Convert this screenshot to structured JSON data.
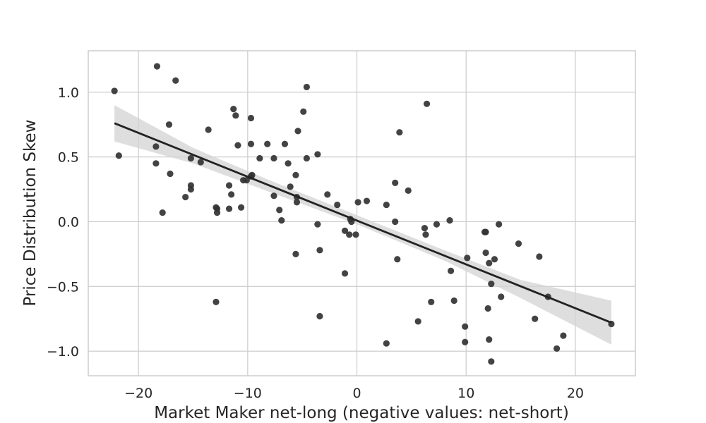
{
  "chart_data": {
    "type": "scatter",
    "title": "",
    "xlabel": "Market Maker net-long (negative values: net-short)",
    "ylabel": "Price Distribution Skew",
    "xlim": [
      -24.6,
      25.5
    ],
    "ylim": [
      -1.19,
      1.32
    ],
    "x_ticks": [
      -20,
      -10,
      0,
      10,
      20
    ],
    "y_ticks": [
      -1.0,
      -0.5,
      0.0,
      0.5,
      1.0
    ],
    "x_tick_labels": [
      "−20",
      "−10",
      "0",
      "10",
      "20"
    ],
    "y_tick_labels": [
      "−1.0",
      "−0.5",
      "0.0",
      "0.5",
      "1.0"
    ],
    "grid": true,
    "legend": "none",
    "colors": {
      "points": "#333333",
      "fit_line": "#222222",
      "ci_band": "#d3d3d3",
      "grid": "#cccccc"
    },
    "points": [
      {
        "x": -22.2,
        "y": 1.01
      },
      {
        "x": -21.8,
        "y": 0.51
      },
      {
        "x": -18.3,
        "y": 1.2
      },
      {
        "x": -18.4,
        "y": 0.58
      },
      {
        "x": -18.4,
        "y": 0.45
      },
      {
        "x": -17.8,
        "y": 0.07
      },
      {
        "x": -17.2,
        "y": 0.75
      },
      {
        "x": -17.1,
        "y": 0.37
      },
      {
        "x": -16.6,
        "y": 1.09
      },
      {
        "x": -15.7,
        "y": 0.19
      },
      {
        "x": -15.2,
        "y": 0.49
      },
      {
        "x": -15.2,
        "y": 0.28
      },
      {
        "x": -15.2,
        "y": 0.25
      },
      {
        "x": -14.3,
        "y": 0.46
      },
      {
        "x": -13.6,
        "y": 0.71
      },
      {
        "x": -12.9,
        "y": 0.11
      },
      {
        "x": -12.8,
        "y": 0.07
      },
      {
        "x": -12.8,
        "y": 0.1
      },
      {
        "x": -12.9,
        "y": -0.62
      },
      {
        "x": -11.7,
        "y": 0.28
      },
      {
        "x": -11.5,
        "y": 0.21
      },
      {
        "x": -11.7,
        "y": 0.1
      },
      {
        "x": -11.3,
        "y": 0.87
      },
      {
        "x": -11.1,
        "y": 0.82
      },
      {
        "x": -10.9,
        "y": 0.59
      },
      {
        "x": -10.6,
        "y": 0.11
      },
      {
        "x": -10.4,
        "y": 0.32
      },
      {
        "x": -10.1,
        "y": 0.32
      },
      {
        "x": -9.7,
        "y": 0.8
      },
      {
        "x": -9.7,
        "y": 0.6
      },
      {
        "x": -9.7,
        "y": 0.35
      },
      {
        "x": -9.6,
        "y": 0.36
      },
      {
        "x": -8.9,
        "y": 0.49
      },
      {
        "x": -8.2,
        "y": 0.6
      },
      {
        "x": -7.6,
        "y": 0.49
      },
      {
        "x": -7.6,
        "y": 0.2
      },
      {
        "x": -7.1,
        "y": 0.09
      },
      {
        "x": -6.9,
        "y": 0.01
      },
      {
        "x": -6.6,
        "y": 0.6
      },
      {
        "x": -6.3,
        "y": 0.45
      },
      {
        "x": -6.1,
        "y": 0.27
      },
      {
        "x": -5.6,
        "y": 0.36
      },
      {
        "x": -5.5,
        "y": 0.19
      },
      {
        "x": -5.5,
        "y": 0.15
      },
      {
        "x": -5.4,
        "y": 0.7
      },
      {
        "x": -5.6,
        "y": -0.25
      },
      {
        "x": -4.9,
        "y": 0.85
      },
      {
        "x": -4.6,
        "y": 1.04
      },
      {
        "x": -4.6,
        "y": 0.49
      },
      {
        "x": -3.6,
        "y": 0.52
      },
      {
        "x": -3.6,
        "y": -0.02
      },
      {
        "x": -3.4,
        "y": -0.22
      },
      {
        "x": -3.4,
        "y": -0.73
      },
      {
        "x": -2.7,
        "y": 0.21
      },
      {
        "x": -1.8,
        "y": 0.13
      },
      {
        "x": -1.1,
        "y": -0.07
      },
      {
        "x": -1.1,
        "y": -0.4
      },
      {
        "x": -0.7,
        "y": -0.1
      },
      {
        "x": -0.6,
        "y": 0.02
      },
      {
        "x": -0.5,
        "y": 0.0
      },
      {
        "x": -0.1,
        "y": -0.1
      },
      {
        "x": 0.1,
        "y": 0.15
      },
      {
        "x": 0.9,
        "y": 0.16
      },
      {
        "x": 2.7,
        "y": 0.13
      },
      {
        "x": 2.7,
        "y": -0.94
      },
      {
        "x": 3.5,
        "y": 0.3
      },
      {
        "x": 3.5,
        "y": 0.0
      },
      {
        "x": 3.7,
        "y": -0.29
      },
      {
        "x": 3.9,
        "y": 0.69
      },
      {
        "x": 4.7,
        "y": 0.24
      },
      {
        "x": 5.6,
        "y": -0.77
      },
      {
        "x": 6.2,
        "y": -0.05
      },
      {
        "x": 6.3,
        "y": -0.1
      },
      {
        "x": 6.4,
        "y": 0.91
      },
      {
        "x": 6.8,
        "y": -0.62
      },
      {
        "x": 7.3,
        "y": -0.02
      },
      {
        "x": 8.5,
        "y": 0.01
      },
      {
        "x": 8.6,
        "y": -0.38
      },
      {
        "x": 8.9,
        "y": -0.61
      },
      {
        "x": 9.9,
        "y": -0.81
      },
      {
        "x": 9.9,
        "y": -0.93
      },
      {
        "x": 10.1,
        "y": -0.28
      },
      {
        "x": 11.7,
        "y": -0.08
      },
      {
        "x": 11.8,
        "y": -0.08
      },
      {
        "x": 11.8,
        "y": -0.24
      },
      {
        "x": 12.0,
        "y": -0.67
      },
      {
        "x": 12.1,
        "y": -0.32
      },
      {
        "x": 12.1,
        "y": -0.91
      },
      {
        "x": 12.3,
        "y": -0.48
      },
      {
        "x": 12.3,
        "y": -1.08
      },
      {
        "x": 12.6,
        "y": -0.29
      },
      {
        "x": 13.0,
        "y": -0.02
      },
      {
        "x": 13.2,
        "y": -0.58
      },
      {
        "x": 14.8,
        "y": -0.17
      },
      {
        "x": 16.3,
        "y": -0.75
      },
      {
        "x": 16.7,
        "y": -0.27
      },
      {
        "x": 17.5,
        "y": -0.58
      },
      {
        "x": 18.3,
        "y": -0.98
      },
      {
        "x": 18.9,
        "y": -0.88
      },
      {
        "x": 23.3,
        "y": -0.79
      }
    ],
    "regression": {
      "x": [
        -22.2,
        23.3
      ],
      "y": [
        0.76,
        -0.78
      ],
      "ci": [
        {
          "x": -22.2,
          "lower": 0.62,
          "upper": 0.9
        },
        {
          "x": -15.0,
          "lower": 0.45,
          "upper": 0.57
        },
        {
          "x": -8.0,
          "lower": 0.23,
          "upper": 0.32
        },
        {
          "x": 0.0,
          "lower": -0.02,
          "upper": 0.05
        },
        {
          "x": 8.0,
          "lower": -0.3,
          "upper": -0.22
        },
        {
          "x": 15.0,
          "lower": -0.59,
          "upper": -0.45
        },
        {
          "x": 23.3,
          "lower": -0.95,
          "upper": -0.61
        }
      ]
    }
  }
}
